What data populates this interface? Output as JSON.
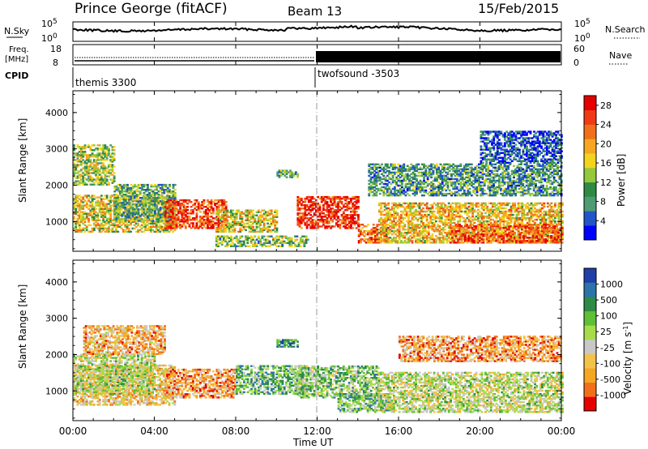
{
  "header": {
    "station": "Prince George (fitACF)",
    "beam": "Beam 13",
    "date": "15/Feb/2015"
  },
  "nsky_panel": {
    "left_label": "N.Sky",
    "right_label": "N.Search",
    "left_ticks": [
      "10^5",
      "10^0"
    ],
    "right_ticks": [
      "10^5",
      "10^0"
    ]
  },
  "freq_panel": {
    "left_label_line1": "Freq.",
    "left_label_line2": "[MHz]",
    "right_label": "Nave",
    "left_ticks": [
      "18",
      "8"
    ],
    "right_ticks": [
      "60",
      "0"
    ]
  },
  "cpid_panel": {
    "label": "CPID",
    "programs": [
      {
        "name": "themis 3300",
        "start_hour": 0
      },
      {
        "name": "twofsound -3503",
        "start_hour": 12
      }
    ]
  },
  "time_axis": {
    "label": "Time UT",
    "ticks": [
      "00:00",
      "04:00",
      "08:00",
      "12:00",
      "16:00",
      "20:00",
      "00:00"
    ]
  },
  "chart_data": [
    {
      "type": "heatmap",
      "title": "",
      "xlabel": "Time UT",
      "ylabel": "Slant Range [km]",
      "xlim": [
        0,
        24
      ],
      "ylim": [
        180,
        4600
      ],
      "yticks": [
        "1000",
        "2000",
        "3000",
        "4000"
      ],
      "colorbar": {
        "label": "Power [dB]",
        "ticks": [
          "4",
          "8",
          "12",
          "16",
          "20",
          "24",
          "28"
        ],
        "range": [
          0,
          30
        ],
        "colors": [
          "#0000ff",
          "#2255c8",
          "#4f9b73",
          "#2f8a46",
          "#93c93a",
          "#f2d41f",
          "#f5a623",
          "#f26f1a",
          "#f03a15",
          "#e50000"
        ]
      },
      "scatter_regions": [
        {
          "t0": 0.0,
          "t1": 5.0,
          "r0": 700,
          "r1": 1700,
          "level": 0.55
        },
        {
          "t0": 0.0,
          "t1": 2.0,
          "r0": 2000,
          "r1": 3100,
          "level": 0.45
        },
        {
          "t0": 2.0,
          "t1": 5.0,
          "r0": 1000,
          "r1": 2000,
          "level": 0.35
        },
        {
          "t0": 4.5,
          "t1": 7.5,
          "r0": 800,
          "r1": 1600,
          "level": 0.85
        },
        {
          "t0": 7.0,
          "t1": 10.0,
          "r0": 700,
          "r1": 1300,
          "level": 0.55
        },
        {
          "t0": 10.0,
          "t1": 11.0,
          "r0": 2200,
          "r1": 2400,
          "level": 0.4
        },
        {
          "t0": 7.0,
          "t1": 11.5,
          "r0": 300,
          "r1": 600,
          "level": 0.4
        },
        {
          "t0": 11.0,
          "t1": 14.0,
          "r0": 800,
          "r1": 1700,
          "level": 0.9
        },
        {
          "t0": 14.0,
          "t1": 15.5,
          "r0": 400,
          "r1": 900,
          "level": 0.75
        },
        {
          "t0": 15.0,
          "t1": 24.0,
          "r0": 400,
          "r1": 1500,
          "level": 0.6
        },
        {
          "t0": 18.5,
          "t1": 24.0,
          "r0": 400,
          "r1": 900,
          "level": 0.8
        },
        {
          "t0": 14.5,
          "t1": 24.0,
          "r0": 1700,
          "r1": 2600,
          "level": 0.3
        },
        {
          "t0": 20.0,
          "t1": 24.0,
          "r0": 2600,
          "r1": 3500,
          "level": 0.15
        }
      ]
    },
    {
      "type": "heatmap",
      "title": "",
      "xlabel": "Time UT",
      "ylabel": "Slant Range [km]",
      "xlim": [
        0,
        24
      ],
      "ylim": [
        180,
        4600
      ],
      "yticks": [
        "1000",
        "2000",
        "3000",
        "4000"
      ],
      "colorbar": {
        "label": "Velocity [m s^-1]",
        "ticks": [
          "1000",
          "500",
          "100",
          "25",
          "-25",
          "-100",
          "-500",
          "-1000"
        ],
        "range": [
          -1000,
          1000
        ],
        "colors": [
          "#e50000",
          "#f26f1a",
          "#f5a623",
          "#f2c24b",
          "#c8c8c8",
          "#a6dc4a",
          "#5fbf37",
          "#2f8a46",
          "#2a74a8",
          "#1f3fa8"
        ]
      },
      "scatter_regions": [
        {
          "t0": 0.0,
          "t1": 5.0,
          "r0": 600,
          "r1": 1700,
          "level": 0.35
        },
        {
          "t0": 0.0,
          "t1": 4.0,
          "r0": 900,
          "r1": 2000,
          "level": 0.5
        },
        {
          "t0": 0.5,
          "t1": 4.5,
          "r0": 2000,
          "r1": 2800,
          "level": 0.3
        },
        {
          "t0": 4.5,
          "t1": 8.0,
          "r0": 800,
          "r1": 1600,
          "level": 0.25
        },
        {
          "t0": 8.0,
          "t1": 11.5,
          "r0": 900,
          "r1": 1700,
          "level": 0.65
        },
        {
          "t0": 10.0,
          "t1": 11.0,
          "r0": 2200,
          "r1": 2400,
          "level": 0.8
        },
        {
          "t0": 11.0,
          "t1": 15.0,
          "r0": 800,
          "r1": 1700,
          "level": 0.6
        },
        {
          "t0": 13.0,
          "t1": 15.5,
          "r0": 400,
          "r1": 900,
          "level": 0.65
        },
        {
          "t0": 15.0,
          "t1": 24.0,
          "r0": 400,
          "r1": 1500,
          "level": 0.5
        },
        {
          "t0": 16.0,
          "t1": 24.0,
          "r0": 1800,
          "r1": 2500,
          "level": 0.25
        }
      ]
    }
  ]
}
